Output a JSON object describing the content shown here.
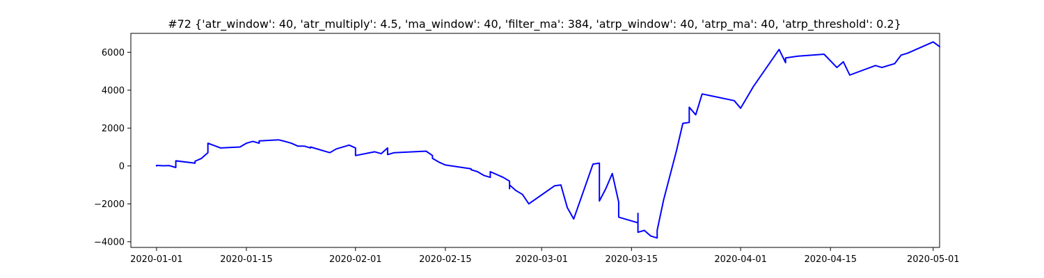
{
  "chart_data": {
    "type": "line",
    "title": "#72 {'atr_window': 40, 'atr_multiply': 4.5, 'ma_window': 40, 'filter_ma': 384, 'atrp_window': 40, 'atrp_ma': 40, 'atrp_threshold': 0.2}",
    "xlabel": "",
    "ylabel": "",
    "x_type": "date",
    "xlim": [
      "2019-12-28",
      "2020-05-02"
    ],
    "ylim": [
      -4300,
      7000
    ],
    "x_ticks": [
      "2020-01-01",
      "2020-01-15",
      "2020-02-01",
      "2020-02-15",
      "2020-03-01",
      "2020-03-15",
      "2020-04-01",
      "2020-04-15",
      "2020-05-01"
    ],
    "y_ticks": [
      -4000,
      -2000,
      0,
      2000,
      4000,
      6000
    ],
    "grid": false,
    "legend": "none",
    "series": [
      {
        "color": "#0000ff",
        "points": [
          [
            "2020-01-01",
            0
          ],
          [
            "2020-01-01",
            30
          ],
          [
            "2020-01-02",
            10
          ],
          [
            "2020-01-03",
            20
          ],
          [
            "2020-01-04",
            -80
          ],
          [
            "2020-01-04",
            270
          ],
          [
            "2020-01-07",
            150
          ],
          [
            "2020-01-07",
            250
          ],
          [
            "2020-01-08",
            400
          ],
          [
            "2020-01-09",
            700
          ],
          [
            "2020-01-09",
            1200
          ],
          [
            "2020-01-11",
            950
          ],
          [
            "2020-01-14",
            1000
          ],
          [
            "2020-01-15",
            1200
          ],
          [
            "2020-01-16",
            1300
          ],
          [
            "2020-01-17",
            1200
          ],
          [
            "2020-01-17",
            1320
          ],
          [
            "2020-01-20",
            1380
          ],
          [
            "2020-01-21",
            1300
          ],
          [
            "2020-01-22",
            1200
          ],
          [
            "2020-01-23",
            1050
          ],
          [
            "2020-01-24",
            1050
          ],
          [
            "2020-01-25",
            950
          ],
          [
            "2020-01-25",
            1000
          ],
          [
            "2020-01-28",
            700
          ],
          [
            "2020-01-29",
            900
          ],
          [
            "2020-01-31",
            1100
          ],
          [
            "2020-02-01",
            950
          ],
          [
            "2020-02-01",
            550
          ],
          [
            "2020-02-04",
            750
          ],
          [
            "2020-02-05",
            650
          ],
          [
            "2020-02-06",
            950
          ],
          [
            "2020-02-06",
            600
          ],
          [
            "2020-02-07",
            700
          ],
          [
            "2020-02-12",
            780
          ],
          [
            "2020-02-13",
            550
          ],
          [
            "2020-02-13",
            400
          ],
          [
            "2020-02-14",
            200
          ],
          [
            "2020-02-15",
            50
          ],
          [
            "2020-02-18",
            -100
          ],
          [
            "2020-02-19",
            -150
          ],
          [
            "2020-02-19",
            -200
          ],
          [
            "2020-02-20",
            -300
          ],
          [
            "2020-02-21",
            -500
          ],
          [
            "2020-02-22",
            -600
          ],
          [
            "2020-02-22",
            -300
          ],
          [
            "2020-02-24",
            -600
          ],
          [
            "2020-02-25",
            -800
          ],
          [
            "2020-02-25",
            -1200
          ],
          [
            "2020-02-25",
            -1000
          ],
          [
            "2020-02-26",
            -1300
          ],
          [
            "2020-02-27",
            -1500
          ],
          [
            "2020-02-27",
            -1500
          ],
          [
            "2020-02-28",
            -2000
          ],
          [
            "2020-03-03",
            -1050
          ],
          [
            "2020-03-04",
            -1000
          ],
          [
            "2020-03-05",
            -2200
          ],
          [
            "2020-03-06",
            -2800
          ],
          [
            "2020-03-09",
            100
          ],
          [
            "2020-03-10",
            150
          ],
          [
            "2020-03-10",
            -1850
          ],
          [
            "2020-03-11",
            -1200
          ],
          [
            "2020-03-12",
            -400
          ],
          [
            "2020-03-13",
            -1900
          ],
          [
            "2020-03-13",
            -2700
          ],
          [
            "2020-03-16",
            -3000
          ],
          [
            "2020-03-16",
            -2500
          ],
          [
            "2020-03-16",
            -3500
          ],
          [
            "2020-03-17",
            -3400
          ],
          [
            "2020-03-18",
            -3700
          ],
          [
            "2020-03-19",
            -3800
          ],
          [
            "2020-03-19",
            -3400
          ],
          [
            "2020-03-20",
            -1800
          ],
          [
            "2020-03-22",
            800
          ],
          [
            "2020-03-23",
            2250
          ],
          [
            "2020-03-24",
            2300
          ],
          [
            "2020-03-24",
            3100
          ],
          [
            "2020-03-25",
            2700
          ],
          [
            "2020-03-26",
            3800
          ],
          [
            "2020-03-31",
            3450
          ],
          [
            "2020-04-01",
            3050
          ],
          [
            "2020-04-03",
            4200
          ],
          [
            "2020-04-07",
            6150
          ],
          [
            "2020-04-08",
            5450
          ],
          [
            "2020-04-08",
            5700
          ],
          [
            "2020-04-10",
            5800
          ],
          [
            "2020-04-14",
            5900
          ],
          [
            "2020-04-16",
            5200
          ],
          [
            "2020-04-17",
            5500
          ],
          [
            "2020-04-18",
            4800
          ],
          [
            "2020-04-22",
            5300
          ],
          [
            "2020-04-23",
            5200
          ],
          [
            "2020-04-25",
            5400
          ],
          [
            "2020-04-26",
            5850
          ],
          [
            "2020-04-27",
            5950
          ],
          [
            "2020-05-01",
            6550
          ],
          [
            "2020-05-02",
            6300
          ]
        ]
      }
    ]
  }
}
